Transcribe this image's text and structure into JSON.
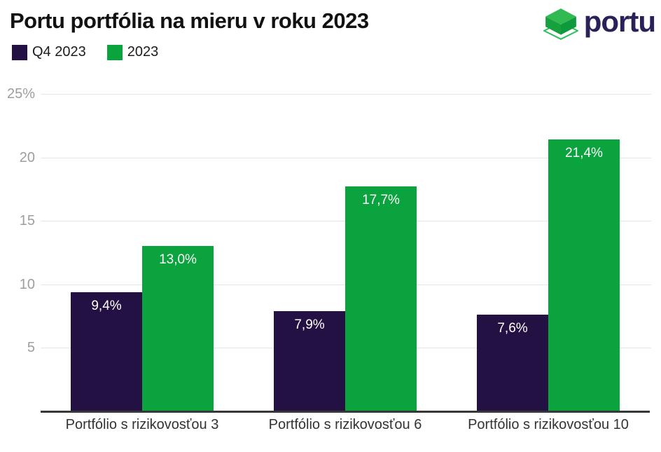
{
  "header": {
    "title": "Portu portfólia na mieru v roku 2023",
    "logo_text": "portu"
  },
  "colors": {
    "background": "#ffffff",
    "title_text": "#121212",
    "legend_text": "#1c1c1c",
    "grid_line": "#e6e6e6",
    "axis_line": "#383838",
    "tick_text": "#9e9e9e",
    "category_text": "#333333",
    "value_text": "#ffffff",
    "logo_navy": "#2b2159",
    "logo_top_face": "#32ba52",
    "logo_left_face": "#17a03e",
    "logo_right_face": "#0e9a3c",
    "logo_outline": "#2fbf5e"
  },
  "chart_data": {
    "type": "bar",
    "title": "Portu portfólia na mieru v roku 2023",
    "categories": [
      "Portfólio s rizikovosťou 3",
      "Portfólio s rizikovosťou 6",
      "Portfólio s rizikovosťou 10"
    ],
    "series": [
      {
        "name": "Q4 2023",
        "color": "#231144",
        "values": [
          9.4,
          7.9,
          7.6
        ],
        "value_labels": [
          "9,4%",
          "7,9%",
          "7,6%"
        ]
      },
      {
        "name": "2023",
        "color": "#0ba33e",
        "values": [
          13.0,
          17.7,
          21.4
        ],
        "value_labels": [
          "13,0%",
          "17,7%",
          "21,4%"
        ]
      }
    ],
    "xlabel": "",
    "ylabel": "",
    "ylim": [
      0,
      25
    ],
    "yticks": [
      {
        "value": 5,
        "label": "5"
      },
      {
        "value": 10,
        "label": "10"
      },
      {
        "value": 15,
        "label": "15"
      },
      {
        "value": 20,
        "label": "20"
      },
      {
        "value": 25,
        "label": "25%"
      }
    ],
    "grid": true,
    "legend_position": "top-left"
  }
}
